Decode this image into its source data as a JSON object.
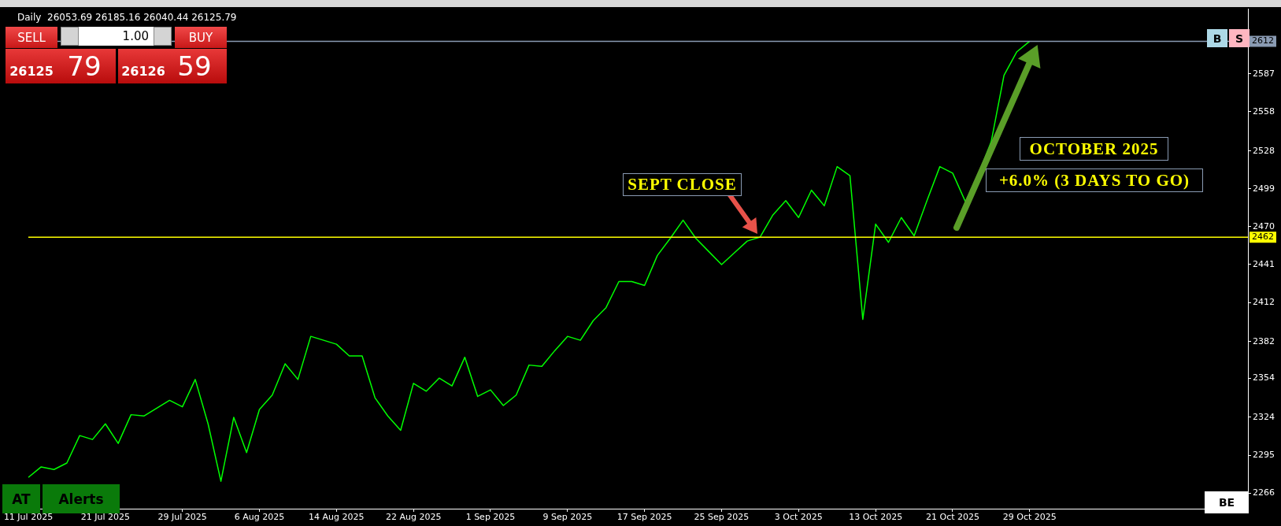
{
  "chart_data": {
    "type": "line",
    "title": "Daily  26053.69 26185.16 26040.44 26125.79",
    "categories": [
      "11 Jul 2025",
      null,
      null,
      null,
      null,
      null,
      "21 Jul 2025",
      null,
      null,
      null,
      null,
      null,
      "29 Jul 2025",
      null,
      null,
      null,
      null,
      null,
      "6 Aug 2025",
      null,
      null,
      null,
      null,
      null,
      "14 Aug 2025",
      null,
      null,
      null,
      null,
      null,
      "22 Aug 2025",
      null,
      null,
      null,
      null,
      null,
      "1 Sep 2025",
      null,
      null,
      null,
      null,
      null,
      "9 Sep 2025",
      null,
      null,
      null,
      null,
      null,
      "17 Sep 2025",
      null,
      null,
      null,
      null,
      null,
      "25 Sep 2025",
      null,
      null,
      null,
      null,
      null,
      "3 Oct 2025",
      null,
      null,
      null,
      null,
      null,
      "13 Oct 2025",
      null,
      null,
      null,
      null,
      null,
      "21 Oct 2025",
      null,
      null,
      null,
      null,
      null,
      "29 Oct 2025",
      null,
      null,
      null,
      null,
      null,
      null,
      null,
      null,
      null,
      null,
      null,
      null,
      null,
      null,
      null,
      null,
      null
    ],
    "series": [
      {
        "color": "#00ff00",
        "values": [
          2278,
          2286,
          2284,
          2289,
          2310,
          2307,
          2319,
          2304,
          2326,
          2325,
          2331,
          2337,
          2332,
          2353,
          2319,
          2275,
          2324,
          2297,
          2330,
          2341,
          2365,
          2353,
          2386,
          2383,
          2380,
          2371,
          2371,
          2339,
          2325,
          2314,
          2350,
          2344,
          2354,
          2348,
          2370,
          2340,
          2345,
          2333,
          2341,
          2364,
          2363,
          2375,
          2386,
          2383,
          2398,
          2408,
          2428,
          2428,
          2425,
          2448,
          2461,
          2475,
          2461,
          2451,
          2441,
          2450,
          2459,
          2462,
          2479,
          2490,
          2477,
          2498,
          2486,
          2516,
          2509,
          2399,
          2472,
          2458,
          2477,
          2463,
          2490,
          2516,
          2511,
          2489,
          2510,
          2535,
          2586,
          2604,
          2612,
          null,
          null,
          null,
          null,
          null,
          null,
          null,
          null,
          null,
          null,
          null,
          null,
          null,
          null,
          null,
          null,
          null
        ]
      }
    ],
    "ylim": [
      2254,
      2637
    ],
    "yticks": [
      2266,
      2295,
      2324,
      2354,
      2382,
      2412,
      2441,
      2470,
      2499,
      2528,
      2558,
      2587
    ],
    "grid": false,
    "legend": false,
    "marker": "none",
    "line_style": "solid",
    "ref_lines": [
      {
        "axis": "y",
        "value": 2462,
        "label": "2462",
        "color": "#ffff00"
      },
      {
        "axis": "y",
        "value": 2612,
        "label": "2612",
        "color": "#8a9bb3"
      }
    ],
    "annotations": [
      "SEPT CLOSE",
      "OCTOBER 2025",
      "+6.0% (3 DAYS TO GO)",
      "SELL",
      "1.00",
      "BUY",
      "26125",
      "79",
      "26126",
      "59",
      "AT",
      "Alerts",
      "B",
      "S",
      "BE"
    ]
  }
}
